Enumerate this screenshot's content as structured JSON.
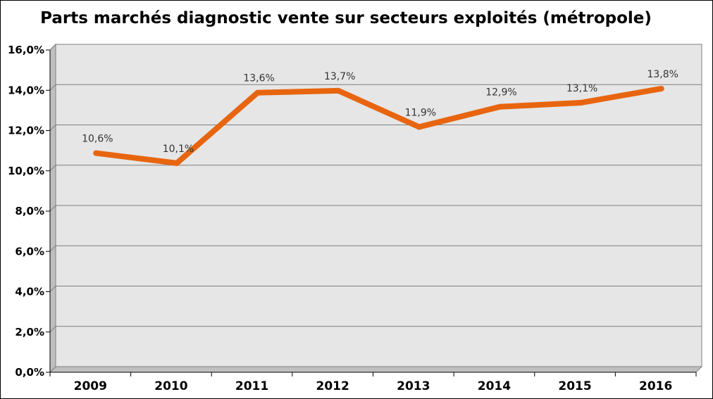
{
  "chart_data": {
    "type": "line",
    "title": "Parts marchés diagnostic vente sur secteurs exploités (métropole)",
    "categories": [
      "2009",
      "2010",
      "2011",
      "2012",
      "2013",
      "2014",
      "2015",
      "2016"
    ],
    "series": [
      {
        "values": [
          10.6,
          10.1,
          13.6,
          13.7,
          11.9,
          12.9,
          13.1,
          13.8
        ],
        "labels": [
          "10,6%",
          "10,1%",
          "13,6%",
          "13,7%",
          "11,9%",
          "12,9%",
          "13,1%",
          "13,8%"
        ]
      }
    ],
    "yticks": [
      "0,0%",
      "2,0%",
      "4,0%",
      "6,0%",
      "8,0%",
      "10,0%",
      "12,0%",
      "14,0%",
      "16,0%"
    ],
    "ylim": [
      0,
      16
    ],
    "grid": true,
    "legend": "none",
    "colors": {
      "line": "#e8650f",
      "plot_background": "#e6e6e6",
      "grid": "#7f7f7f"
    }
  }
}
